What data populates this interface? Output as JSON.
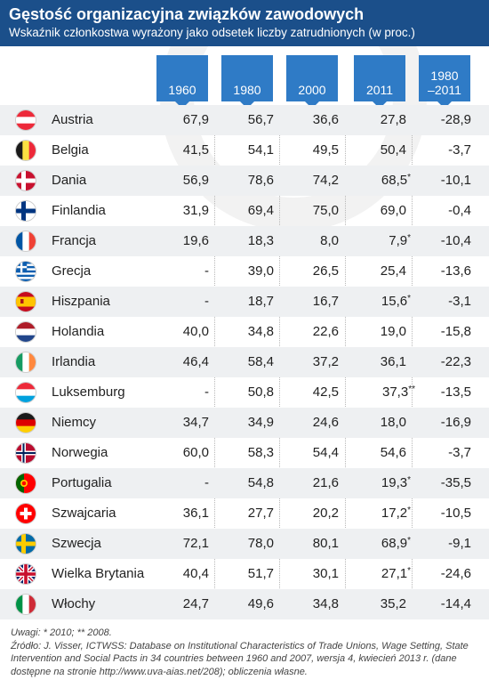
{
  "chart_data": {
    "type": "table",
    "title": "Gęstość organizacyjna związków zawodowych",
    "subtitle": "Wskaźnik członkostwa wyrażony jako odsetek liczby zatrudnionych (w proc.)",
    "columns": [
      "1960",
      "1980",
      "2000",
      "2011",
      "1980\n–2011"
    ],
    "rows": [
      {
        "country": "Austria",
        "flag": "austria-flag-icon",
        "values": [
          "67,9",
          "56,7",
          "36,6",
          "27,8",
          "-28,9"
        ],
        "star": ""
      },
      {
        "country": "Belgia",
        "flag": "belgium-flag-icon",
        "values": [
          "41,5",
          "54,1",
          "49,5",
          "50,4",
          "-3,7"
        ],
        "star": ""
      },
      {
        "country": "Dania",
        "flag": "denmark-flag-icon",
        "values": [
          "56,9",
          "78,6",
          "74,2",
          "68,5",
          "-10,1"
        ],
        "star": "*"
      },
      {
        "country": "Finlandia",
        "flag": "finland-flag-icon",
        "values": [
          "31,9",
          "69,4",
          "75,0",
          "69,0",
          "-0,4"
        ],
        "star": ""
      },
      {
        "country": "Francja",
        "flag": "france-flag-icon",
        "values": [
          "19,6",
          "18,3",
          "8,0",
          "7,9",
          "-10,4"
        ],
        "star": "*"
      },
      {
        "country": "Grecja",
        "flag": "greece-flag-icon",
        "values": [
          "-",
          "39,0",
          "26,5",
          "25,4",
          "-13,6"
        ],
        "star": ""
      },
      {
        "country": "Hiszpania",
        "flag": "spain-flag-icon",
        "values": [
          "-",
          "18,7",
          "16,7",
          "15,6",
          "-3,1"
        ],
        "star": "*"
      },
      {
        "country": "Holandia",
        "flag": "netherlands-flag-icon",
        "values": [
          "40,0",
          "34,8",
          "22,6",
          "19,0",
          "-15,8"
        ],
        "star": ""
      },
      {
        "country": "Irlandia",
        "flag": "ireland-flag-icon",
        "values": [
          "46,4",
          "58,4",
          "37,2",
          "36,1",
          "-22,3"
        ],
        "star": ""
      },
      {
        "country": "Luksemburg",
        "flag": "luxembourg-flag-icon",
        "values": [
          "-",
          "50,8",
          "42,5",
          "37,3",
          "-13,5"
        ],
        "star": "**"
      },
      {
        "country": "Niemcy",
        "flag": "germany-flag-icon",
        "values": [
          "34,7",
          "34,9",
          "24,6",
          "18,0",
          "-16,9"
        ],
        "star": ""
      },
      {
        "country": "Norwegia",
        "flag": "norway-flag-icon",
        "values": [
          "60,0",
          "58,3",
          "54,4",
          "54,6",
          "-3,7"
        ],
        "star": ""
      },
      {
        "country": "Portugalia",
        "flag": "portugal-flag-icon",
        "values": [
          "-",
          "54,8",
          "21,6",
          "19,3",
          "-35,5"
        ],
        "star": "*"
      },
      {
        "country": "Szwajcaria",
        "flag": "switzerland-flag-icon",
        "values": [
          "36,1",
          "27,7",
          "20,2",
          "17,2",
          "-10,5"
        ],
        "star": "*"
      },
      {
        "country": "Szwecja",
        "flag": "sweden-flag-icon",
        "values": [
          "72,1",
          "78,0",
          "80,1",
          "68,9",
          "-9,1"
        ],
        "star": "*"
      },
      {
        "country": "Wielka Brytania",
        "flag": "uk-flag-icon",
        "values": [
          "40,4",
          "51,7",
          "30,1",
          "27,1",
          "-24,6"
        ],
        "star": "*"
      },
      {
        "country": "Włochy",
        "flag": "italy-flag-icon",
        "values": [
          "24,7",
          "49,6",
          "34,8",
          "35,2",
          "-14,4"
        ],
        "star": ""
      }
    ]
  },
  "notes": {
    "line1": "Uwagi: * 2010; ** 2008.",
    "line2": "Źródło: J. Visser, ICTWSS: Database on Institutional Characteristics of Trade Unions, Wage Setting, State Intervention and Social Pacts in 34 countries between 1960 and 2007, wersja 4, kwiecień 2013 r. (dane dostępne na stronie http://www.uva-aias.net/208); obliczenia własne."
  },
  "colors": {
    "header_bg": "#1b4f8a",
    "column_header_bg": "#2f7bc6",
    "row_shade": "#eef0f2"
  }
}
